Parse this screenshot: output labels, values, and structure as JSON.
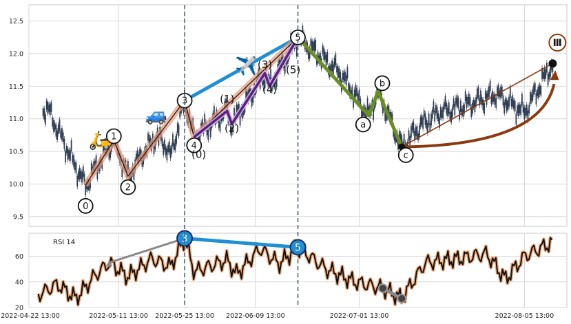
{
  "chart_data": {
    "type": "line",
    "price_panel": {
      "series_type": "candlestick",
      "ylim": [
        9.35,
        12.75
      ],
      "y_ticks": [
        "9.5",
        "10.0",
        "10.5",
        "11.0",
        "11.5",
        "12.0",
        "12.5"
      ],
      "y_tick_values": [
        9.5,
        10.0,
        10.5,
        11.0,
        11.5,
        12.0,
        12.5
      ],
      "grid": true,
      "primary_wave": {
        "points": [
          {
            "date": "2022-05-04",
            "price": 9.98,
            "label": "0"
          },
          {
            "date": "2022-05-10",
            "price": 10.67,
            "label": "1"
          },
          {
            "date": "2022-05-13",
            "price": 10.12,
            "label": "2"
          },
          {
            "date": "2022-05-25",
            "price": 11.28,
            "label": "3"
          },
          {
            "date": "2022-05-27",
            "price": 10.72,
            "label": "4"
          },
          {
            "date": "2022-06-18",
            "price": 12.25,
            "label": "5"
          },
          {
            "date": "2022-07-03",
            "price": 11.05,
            "label": "a"
          },
          {
            "date": "2022-07-05",
            "price": 11.42,
            "label": "b"
          },
          {
            "date": "2022-07-10",
            "price": 10.57,
            "label": "c"
          }
        ]
      },
      "sub_wave_labels": [
        {
          "date": "2022-05-28",
          "price": 10.4,
          "label": "(0)"
        },
        {
          "date": "2022-06-03",
          "price": 11.25,
          "label": "(1)"
        },
        {
          "date": "2022-06-04",
          "price": 10.8,
          "label": "(2)"
        },
        {
          "date": "2022-06-11",
          "price": 11.78,
          "label": "(3)"
        },
        {
          "date": "2022-06-12",
          "price": 11.4,
          "label": "(4)"
        },
        {
          "date": "2022-06-17",
          "price": 11.7,
          "label": "(5)"
        }
      ],
      "sub_wave_path": [
        {
          "date": "2022-05-27",
          "price": 10.72
        },
        {
          "date": "2022-06-03",
          "price": 11.12
        },
        {
          "date": "2022-06-04",
          "price": 10.92
        },
        {
          "date": "2022-06-11",
          "price": 11.7
        },
        {
          "date": "2022-06-12",
          "price": 11.5
        },
        {
          "date": "2022-06-18",
          "price": 12.25
        }
      ],
      "trend_line_3_5": [
        {
          "date": "2022-05-25",
          "price": 11.28
        },
        {
          "date": "2022-06-18",
          "price": 12.25
        }
      ],
      "projection_target": {
        "date": "2022-08-11",
        "price": 11.85
      },
      "degree_label": "Ⅲ",
      "icons": [
        "scooter-icon",
        "car-icon",
        "airplane-icon"
      ]
    },
    "rsi_panel": {
      "title": "RSI 14",
      "ylim": [
        20,
        78
      ],
      "y_ticks": [
        "20",
        "40",
        "60"
      ],
      "y_tick_values": [
        20,
        40,
        60
      ],
      "divergence_peaks": [
        {
          "date": "2022-05-25",
          "value": 74,
          "label": "3"
        },
        {
          "date": "2022-06-18",
          "value": 67,
          "label": "5"
        }
      ],
      "gray_divergence_line": [
        {
          "date": "2022-05-09",
          "value": 55
        },
        {
          "date": "2022-05-25",
          "value": 74
        }
      ],
      "gray_bull_divergence": [
        {
          "date": "2022-07-06",
          "value": 35
        },
        {
          "date": "2022-07-10",
          "value": 27
        }
      ]
    },
    "x_start": "2022-04-22",
    "x_end": "2022-08-14",
    "x_ticks": [
      "2022-04-22 13:00",
      "2022-05-11 13:00",
      "2022-05-25 13:00",
      "2022-06-09 13:00",
      "2022-07-01 13:00",
      "2022-08-05 13:00"
    ],
    "x_tick_dates": [
      "2022-04-22",
      "2022-05-11",
      "2022-05-25",
      "2022-06-09",
      "2022-07-01",
      "2022-08-05"
    ],
    "vertical_markers": [
      "2022-05-25",
      "2022-06-18"
    ],
    "colors": {
      "candle": "#2f3d52",
      "wave_main": "#e89a7a",
      "sub_wave": "#5b1e7e",
      "trend_blue": "#1f8fd6",
      "correction_green": "#6b8e23",
      "projection_brown": "#8b3a0f",
      "rsi_line": "#111111",
      "rsi_glow": "#f0a878",
      "gray": "#888888",
      "grid": "#d7d7d7"
    }
  }
}
